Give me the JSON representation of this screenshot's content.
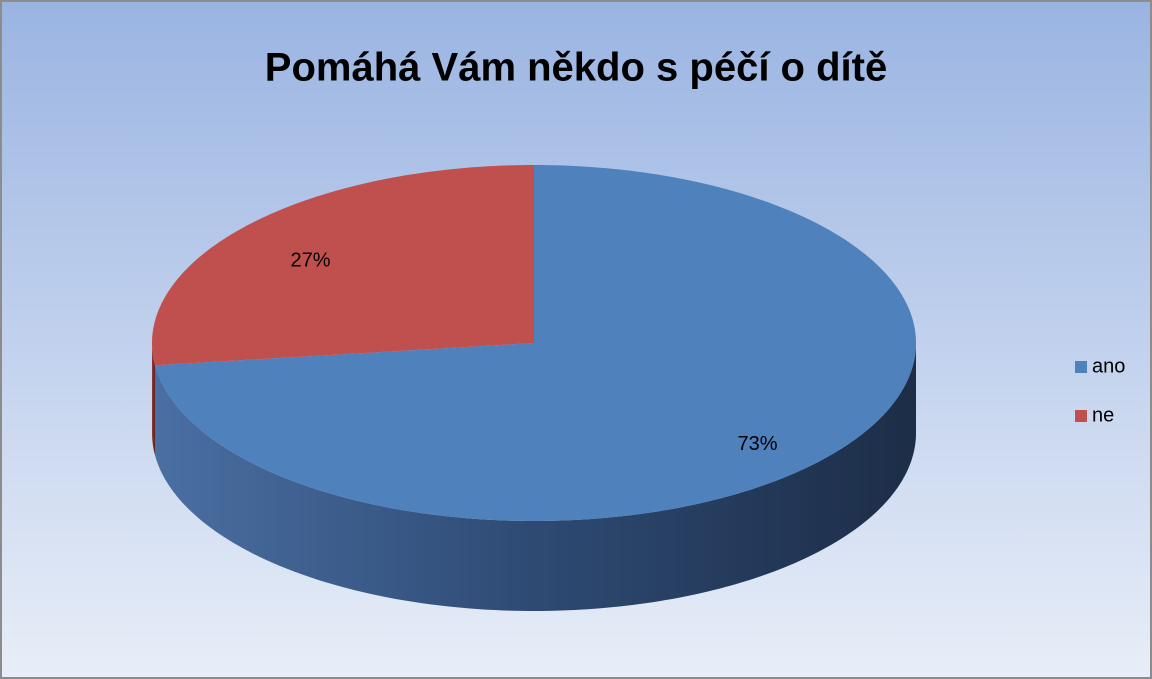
{
  "chart_data": {
    "type": "pie",
    "title": "Pomáhá Vám někdo s péčí o dítě",
    "categories": [
      "ano",
      "ne"
    ],
    "values": [
      73,
      27
    ],
    "value_labels": [
      "73%",
      "27%"
    ],
    "colors": [
      "#4f81bd",
      "#c0504d"
    ],
    "legend": "right"
  }
}
